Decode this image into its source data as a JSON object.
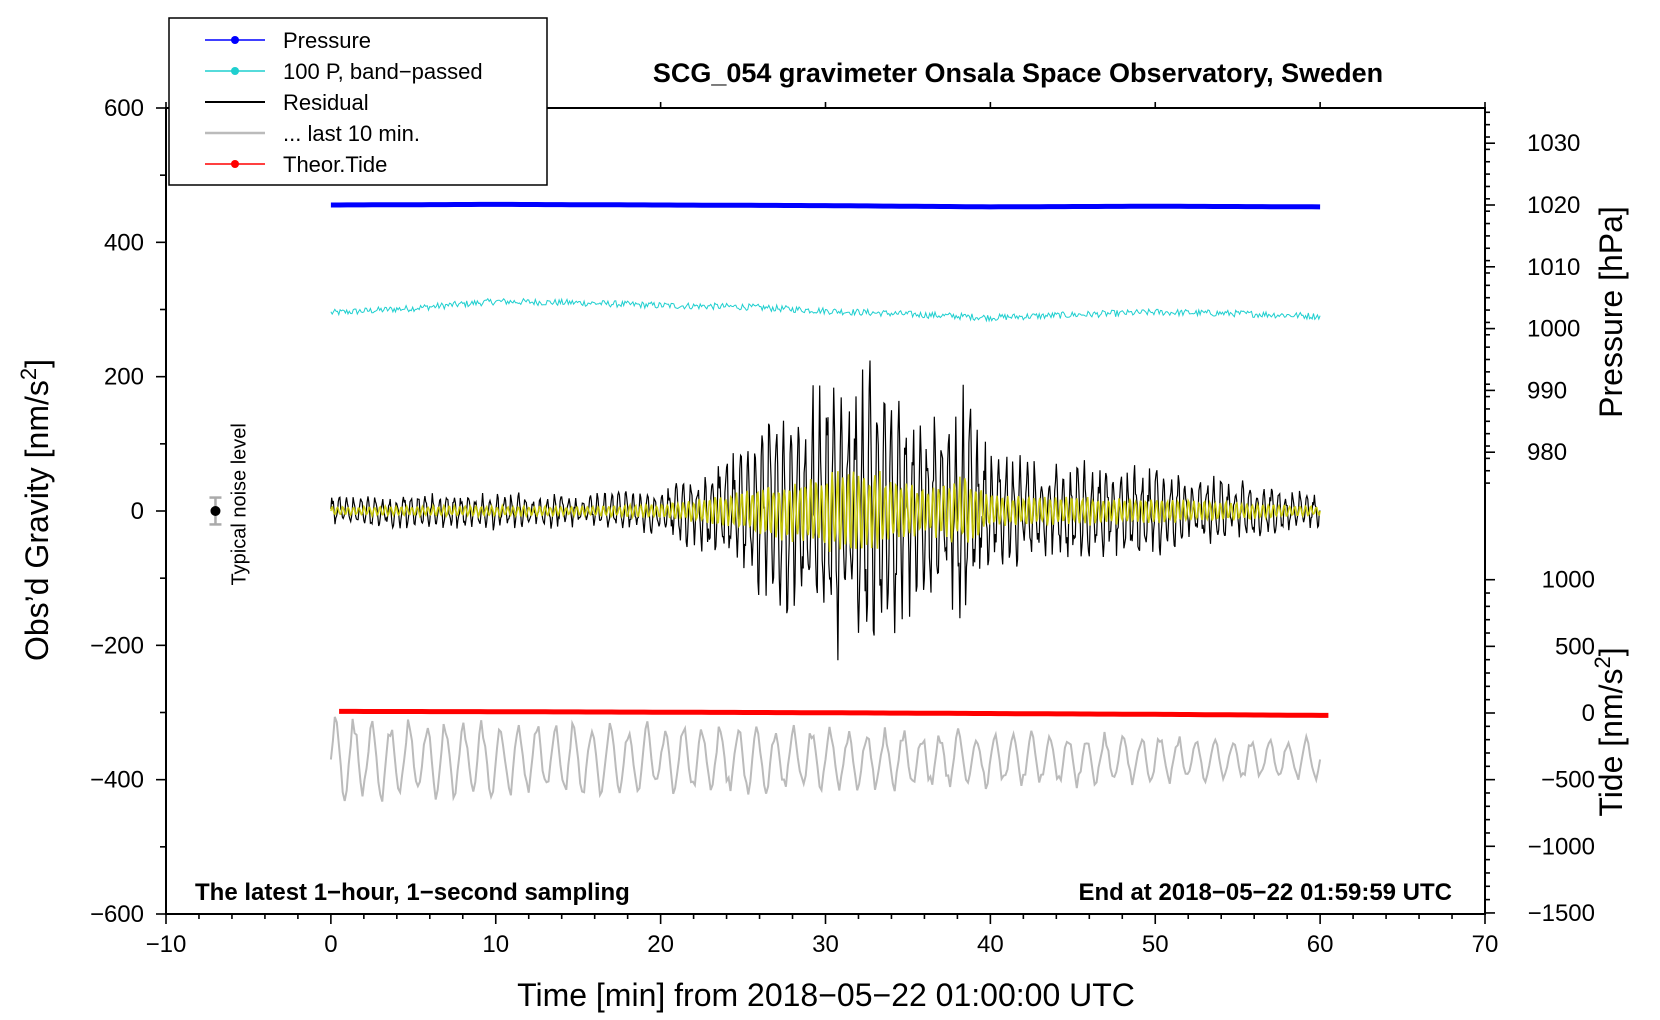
{
  "chart_data": {
    "type": "line",
    "title": "SCG_054 gravimeter Onsala Space Observatory, Sweden",
    "xlabel": "Time [min] from 2018−05−22 01:00:00 UTC",
    "ylabel_left_prefix": "Obs’d Gravity [nm/s",
    "ylabel_left_sup": "2",
    "ylabel_left_suffix": "]",
    "ylabel_pressure": "Pressure [hPa]",
    "ylabel_tide_prefix": "Tide [nm/s",
    "ylabel_tide_sup": "2",
    "ylabel_tide_suffix": "]",
    "xlim": [
      -10,
      70
    ],
    "ylim": [
      -600,
      600
    ],
    "x_ticks": [
      -10,
      0,
      10,
      20,
      30,
      40,
      50,
      60,
      70
    ],
    "x_tick_labels": [
      "−10",
      "0",
      "10",
      "20",
      "30",
      "40",
      "50",
      "60",
      "70"
    ],
    "y_ticks": [
      -600,
      -400,
      -200,
      0,
      200,
      400,
      600
    ],
    "y_tick_labels": [
      "−600",
      "−400",
      "−200",
      "0",
      "200",
      "400",
      "600"
    ],
    "pressure_ticks": [
      980,
      990,
      1000,
      1010,
      1020,
      1030
    ],
    "pressure_tick_labels": [
      "980",
      "990",
      "1000",
      "1010",
      "1020",
      "1030"
    ],
    "tide_ticks": [
      -1500,
      -1000,
      -500,
      0,
      500,
      1000
    ],
    "tide_tick_labels": [
      "−1500",
      "−1000",
      "−500",
      "0",
      "500",
      "1000"
    ],
    "legend": [
      {
        "label": "Pressure",
        "color": "#0000ff",
        "marker": true
      },
      {
        "label": "100 P, band−passed",
        "color": "#1fcfcf",
        "marker": true
      },
      {
        "label": "Residual",
        "color": "#000000",
        "marker": false
      },
      {
        "label": "... last 10 min.",
        "color": "#bbbbbb",
        "marker": false
      },
      {
        "label": "Theor.Tide",
        "color": "#ff0000",
        "marker": true
      }
    ],
    "series": [
      {
        "name": "Pressure",
        "axis": "pressure",
        "color": "#0000ff",
        "x": [
          0,
          10,
          20,
          30,
          40,
          50,
          60
        ],
        "values": [
          1020,
          1020.1,
          1020,
          1019.9,
          1019.7,
          1019.8,
          1019.7
        ]
      },
      {
        "name": "100 P, band-passed",
        "axis": "gravity",
        "color": "#1fcfcf",
        "x": [
          0,
          5,
          10,
          15,
          20,
          25,
          30,
          35,
          40,
          45,
          50,
          55,
          60
        ],
        "values": [
          295,
          302,
          312,
          310,
          306,
          304,
          298,
          293,
          288,
          292,
          296,
          294,
          290
        ]
      },
      {
        "name": "Theor.Tide",
        "axis": "tide",
        "color": "#ff0000",
        "x": [
          0,
          10,
          20,
          30,
          40,
          50,
          60
        ],
        "values": [
          12,
          10,
          6,
          2,
          -4,
          -10,
          -18
        ]
      },
      {
        "name": "Residual",
        "axis": "gravity",
        "color": "#000000",
        "x_range": [
          0,
          60
        ],
        "envelope_x": [
          0,
          10,
          15,
          20,
          22,
          25,
          27,
          29,
          31,
          33,
          35,
          37,
          38.5,
          40,
          45,
          50,
          55,
          60
        ],
        "envelope_amp": [
          25,
          30,
          25,
          40,
          60,
          110,
          160,
          190,
          250,
          230,
          160,
          150,
          200,
          90,
          80,
          70,
          50,
          25
        ]
      },
      {
        "name": "Residual low-pass",
        "axis": "gravity",
        "color": "#cccc00",
        "x_range": [
          0,
          60
        ]
      },
      {
        "name": "... last 10 min.",
        "axis": "gravity",
        "color": "#bbbbbb",
        "x_range": [
          0,
          60
        ],
        "center": -370,
        "min": -445,
        "max": -295
      }
    ],
    "noise_label": "Typical noise level",
    "noise_bar": {
      "x": -7,
      "y": 0,
      "err": 20
    },
    "note_left": "The latest 1−hour, 1−second sampling",
    "note_right": "End at 2018−05−22 01:59:59 UTC"
  }
}
